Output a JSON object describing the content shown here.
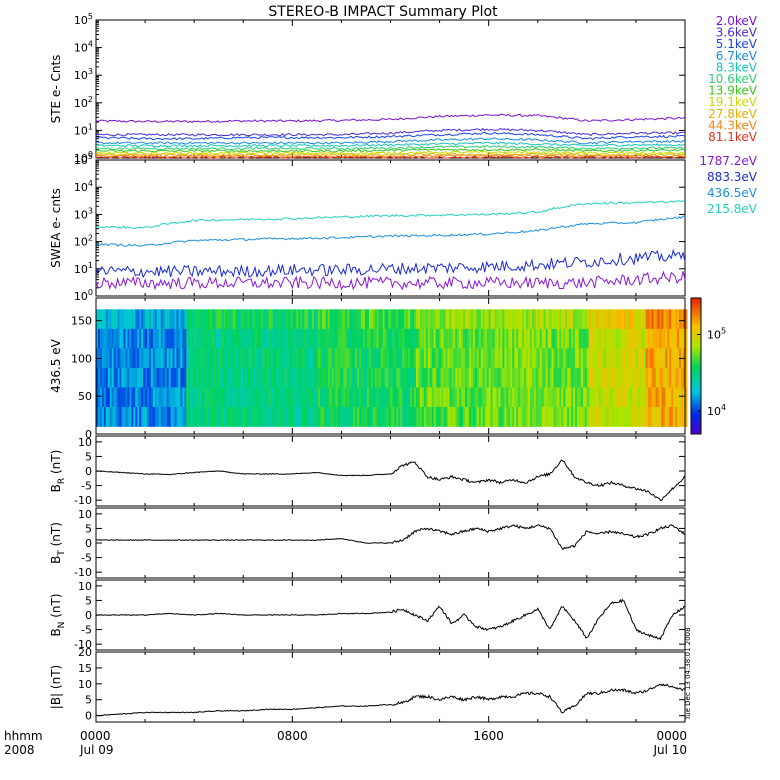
{
  "title": "STEREO-B IMPACT Summary Plot",
  "footer": {
    "left_top": "hhmm",
    "left_bottom": "2008",
    "stamp": "Tue Dec 13 04:38:01 2008"
  },
  "colors": {
    "ste_channels": [
      "#7a10d8",
      "#4a2ad8",
      "#1a44e8",
      "#1c8ae0",
      "#18c4c0",
      "#2ad070",
      "#38c818",
      "#c8d800",
      "#e8b000",
      "#f08818",
      "#e83018"
    ],
    "swea_channels": [
      "#8a18d8",
      "#1a2ae0",
      "#1a90e0",
      "#20d0c0"
    ]
  },
  "x_axis": {
    "tick_labels": [
      "0000",
      "0800",
      "1600",
      "0000"
    ],
    "date_labels": [
      "Jul 09",
      "Jul 10"
    ]
  },
  "chart_data": [
    {
      "type": "line",
      "panel": "ste",
      "ylabel": "STE e- Cnts",
      "yscale": "log",
      "ylim": [
        1,
        100000
      ],
      "y_tick_labels": [
        "10^0",
        "10^1",
        "10^2",
        "10^3",
        "10^4",
        "10^5"
      ],
      "x": [
        "00:00",
        "02:00",
        "04:00",
        "06:00",
        "08:00",
        "10:00",
        "12:00",
        "14:00",
        "16:00",
        "18:00",
        "20:00",
        "22:00",
        "24:00"
      ],
      "series": [
        {
          "name": "2.0keV",
          "values": [
            22,
            21,
            21,
            22,
            22,
            23,
            25,
            32,
            36,
            34,
            22,
            25,
            28
          ]
        },
        {
          "name": "3.6keV",
          "values": [
            7,
            7,
            7,
            7,
            7,
            7,
            8,
            10,
            11,
            10,
            7,
            8,
            8
          ]
        },
        {
          "name": "5.1keV",
          "values": [
            5.5,
            5,
            5,
            5.5,
            5.5,
            5.5,
            6,
            7,
            8,
            7,
            5,
            6,
            6
          ]
        },
        {
          "name": "6.7keV",
          "values": [
            3.5,
            3.5,
            3.5,
            3.5,
            3.5,
            3.5,
            4,
            4.5,
            5,
            4.5,
            3.5,
            4,
            4
          ]
        },
        {
          "name": "8.3keV",
          "values": [
            2.8,
            2.8,
            2.8,
            2.8,
            2.8,
            2.8,
            3,
            3.2,
            3.5,
            3.2,
            2.8,
            3,
            3
          ]
        },
        {
          "name": "10.6keV",
          "values": [
            2.2,
            2.2,
            2.2,
            2.2,
            2.2,
            2.2,
            2.3,
            2.5,
            2.6,
            2.5,
            2.2,
            2.3,
            2.3
          ]
        },
        {
          "name": "13.9keV",
          "values": [
            1.8,
            1.8,
            1.8,
            1.8,
            1.8,
            1.8,
            1.9,
            2,
            2,
            2,
            1.8,
            1.9,
            1.9
          ]
        },
        {
          "name": "19.1keV",
          "values": [
            1.5,
            1.5,
            1.5,
            1.5,
            1.5,
            1.5,
            1.5,
            1.6,
            1.6,
            1.6,
            1.5,
            1.5,
            1.5
          ]
        },
        {
          "name": "27.8keV",
          "values": [
            1.3,
            1.3,
            1.3,
            1.3,
            1.3,
            1.3,
            1.3,
            1.35,
            1.35,
            1.35,
            1.3,
            1.3,
            1.3
          ]
        },
        {
          "name": "44.3keV",
          "values": [
            1.15,
            1.15,
            1.15,
            1.15,
            1.15,
            1.15,
            1.15,
            1.2,
            1.2,
            1.2,
            1.15,
            1.15,
            1.15
          ]
        },
        {
          "name": "81.1keV",
          "values": [
            1.05,
            1.05,
            1.05,
            1.05,
            1.05,
            1.05,
            1.05,
            1.05,
            1.05,
            1.05,
            1.05,
            1.05,
            1.05
          ]
        }
      ]
    },
    {
      "type": "line",
      "panel": "swea",
      "ylabel": "SWEA e- cnts",
      "yscale": "log",
      "ylim": [
        1,
        100000
      ],
      "y_tick_labels": [
        "10^0",
        "10^1",
        "10^2",
        "10^3",
        "10^4",
        "10^5"
      ],
      "x": [
        "00:00",
        "02:00",
        "04:00",
        "06:00",
        "08:00",
        "10:00",
        "12:00",
        "14:00",
        "16:00",
        "18:00",
        "20:00",
        "22:00",
        "24:00"
      ],
      "series": [
        {
          "name": "1787.2eV",
          "values": [
            3,
            3,
            3,
            3,
            3,
            3,
            3,
            3,
            3,
            3,
            3,
            4,
            5
          ]
        },
        {
          "name": "883.3eV",
          "values": [
            8,
            8,
            8,
            8,
            9,
            9,
            10,
            11,
            12,
            14,
            18,
            25,
            30
          ]
        },
        {
          "name": "436.5eV",
          "values": [
            80,
            70,
            110,
            120,
            130,
            140,
            160,
            170,
            190,
            250,
            450,
            500,
            800
          ]
        },
        {
          "name": "215.8eV",
          "values": [
            350,
            320,
            600,
            650,
            700,
            800,
            900,
            950,
            1000,
            1200,
            2500,
            2700,
            3000
          ]
        }
      ]
    },
    {
      "type": "heatmap",
      "panel": "pad",
      "ylabel": "436.5 eV",
      "ylim": [
        0,
        180
      ],
      "y_tick_labels": [
        "0",
        "50",
        "100",
        "150"
      ],
      "colorbar_tick_labels": [
        "10^4",
        "10^5"
      ],
      "colorbar_range": [
        5000,
        300000
      ],
      "time_blocks": [
        {
          "start": "00:00",
          "end": "03:40",
          "level": 0.25
        },
        {
          "start": "03:40",
          "end": "09:00",
          "level": 0.45
        },
        {
          "start": "09:00",
          "end": "10:00",
          "level": 0.5
        },
        {
          "start": "10:00",
          "end": "13:00",
          "level": 0.5
        },
        {
          "start": "13:00",
          "end": "16:40",
          "level": 0.58
        },
        {
          "start": "16:40",
          "end": "20:00",
          "level": 0.6
        },
        {
          "start": "20:00",
          "end": "22:20",
          "level": 0.7
        },
        {
          "start": "22:20",
          "end": "24:00",
          "level": 0.82
        }
      ]
    },
    {
      "type": "line",
      "panel": "br",
      "ylabel": "B_R (nT)",
      "ylim": [
        -12,
        12
      ],
      "y_tick_labels": [
        "10",
        "5",
        "0",
        "-5",
        "-10"
      ],
      "x": [
        0,
        1,
        2,
        3,
        4,
        5,
        6,
        7,
        8,
        9,
        10,
        11,
        12,
        12.5,
        13,
        13.5,
        14,
        14.5,
        15,
        15.5,
        16,
        16.5,
        17,
        17.5,
        18,
        18.5,
        19,
        19.5,
        20,
        20.5,
        21,
        21.5,
        22,
        22.5,
        23,
        23.5,
        24
      ],
      "y": [
        0,
        -0.5,
        -1,
        -1.2,
        -0.5,
        0,
        -1,
        -1,
        -1,
        -0.5,
        -1.5,
        -1.5,
        -1,
        2,
        3,
        -2,
        -3,
        -2,
        -3,
        -4,
        -3,
        -4,
        -3,
        -4,
        -2,
        -1,
        4,
        -2,
        -4,
        -5,
        -4,
        -5,
        -6,
        -7,
        -10,
        -6,
        -2
      ]
    },
    {
      "type": "line",
      "panel": "bt",
      "ylabel": "B_T (nT)",
      "ylim": [
        -12,
        12
      ],
      "y_tick_labels": [
        "10",
        "5",
        "0",
        "-5",
        "-10"
      ],
      "x": [
        0,
        1,
        2,
        3,
        4,
        5,
        6,
        7,
        8,
        9,
        10,
        11,
        12,
        12.5,
        13,
        13.5,
        14,
        14.5,
        15,
        15.5,
        16,
        16.5,
        17,
        17.5,
        18,
        18.5,
        19,
        19.5,
        20,
        20.5,
        21,
        21.5,
        22,
        22.5,
        23,
        23.5,
        24
      ],
      "y": [
        1,
        1,
        1,
        1,
        1,
        1,
        1,
        1,
        1,
        1,
        1.5,
        0,
        0,
        1,
        4,
        5,
        4,
        3,
        4,
        5,
        4,
        5,
        6,
        5,
        6,
        5,
        -2,
        -1,
        4,
        3,
        4,
        3,
        2,
        3,
        5,
        6,
        3
      ]
    },
    {
      "type": "line",
      "panel": "bn",
      "ylabel": "B_N (nT)",
      "ylim": [
        -12,
        12
      ],
      "y_tick_labels": [
        "10",
        "5",
        "0",
        "-5",
        "-10"
      ],
      "x": [
        0,
        1,
        2,
        3,
        4,
        5,
        6,
        7,
        8,
        9,
        10,
        11,
        12,
        12.5,
        13,
        13.5,
        14,
        14.5,
        15,
        15.5,
        16,
        16.5,
        17,
        17.5,
        18,
        18.5,
        19,
        19.5,
        20,
        20.5,
        21,
        21.5,
        22,
        22.5,
        23,
        23.5,
        24
      ],
      "y": [
        0,
        0,
        0,
        0.5,
        0,
        0.5,
        0,
        0,
        0,
        0,
        0.5,
        0.5,
        1,
        2,
        0,
        -2,
        3,
        -3,
        0,
        -4,
        -5,
        -4,
        -2,
        0,
        2,
        -5,
        3,
        -2,
        -8,
        -1,
        4,
        5,
        -5,
        -7,
        -8,
        0,
        3
      ]
    },
    {
      "type": "line",
      "panel": "bmag",
      "ylabel": "|B| (nT)",
      "ylim": [
        -2,
        20
      ],
      "y_tick_labels": [
        "20",
        "15",
        "10",
        "5",
        "0"
      ],
      "x": [
        0,
        1,
        2,
        3,
        4,
        5,
        6,
        7,
        8,
        9,
        10,
        11,
        12,
        12.5,
        13,
        13.5,
        14,
        14.5,
        15,
        15.5,
        16,
        16.5,
        17,
        17.5,
        18,
        18.5,
        19,
        19.5,
        20,
        20.5,
        21,
        21.5,
        22,
        22.5,
        23,
        23.5,
        24
      ],
      "y": [
        0,
        0.5,
        1,
        1,
        1,
        1.5,
        1.5,
        2,
        2,
        2.5,
        3,
        3,
        3.5,
        4,
        6,
        6,
        5,
        6,
        5,
        6,
        5,
        6,
        6,
        7,
        7,
        6,
        1,
        3,
        7,
        7,
        8,
        8,
        7,
        8,
        10,
        9,
        8
      ]
    }
  ]
}
